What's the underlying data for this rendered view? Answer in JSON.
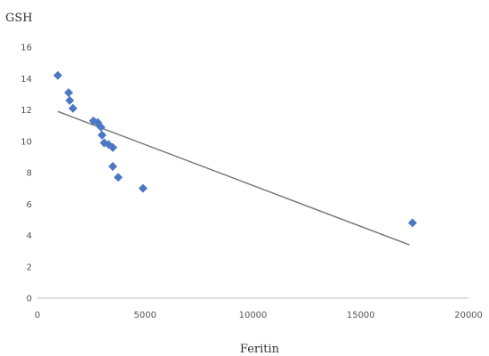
{
  "chart_data": {
    "type": "scatter",
    "title": "",
    "xlabel": "Feritin",
    "ylabel": "GSH",
    "xlim": [
      0,
      20000
    ],
    "ylim": [
      0,
      16
    ],
    "xticks": [
      "0",
      "5000",
      "10000",
      "15000",
      "20000"
    ],
    "yticks": [
      "0",
      "2",
      "4",
      "6",
      "8",
      "10",
      "12",
      "14",
      "16"
    ],
    "grid": false,
    "legend": "none",
    "series": [
      {
        "color": "#4a78c2",
        "marker": "diamond",
        "points": [
          {
            "x": 950,
            "y": 14.2
          },
          {
            "x": 1450,
            "y": 13.1
          },
          {
            "x": 1500,
            "y": 12.6
          },
          {
            "x": 1650,
            "y": 12.1
          },
          {
            "x": 2600,
            "y": 11.3
          },
          {
            "x": 2800,
            "y": 11.2
          },
          {
            "x": 2950,
            "y": 10.9
          },
          {
            "x": 3000,
            "y": 10.4
          },
          {
            "x": 3100,
            "y": 9.9
          },
          {
            "x": 3300,
            "y": 9.8
          },
          {
            "x": 3500,
            "y": 9.6
          },
          {
            "x": 3500,
            "y": 8.4
          },
          {
            "x": 3750,
            "y": 7.7
          },
          {
            "x": 4900,
            "y": 7.0
          },
          {
            "x": 17400,
            "y": 4.8
          }
        ]
      }
    ],
    "trendline": {
      "color": "#777777",
      "from": {
        "x": 950,
        "y": 11.9
      },
      "to": {
        "x": 17250,
        "y": 3.4
      }
    }
  }
}
